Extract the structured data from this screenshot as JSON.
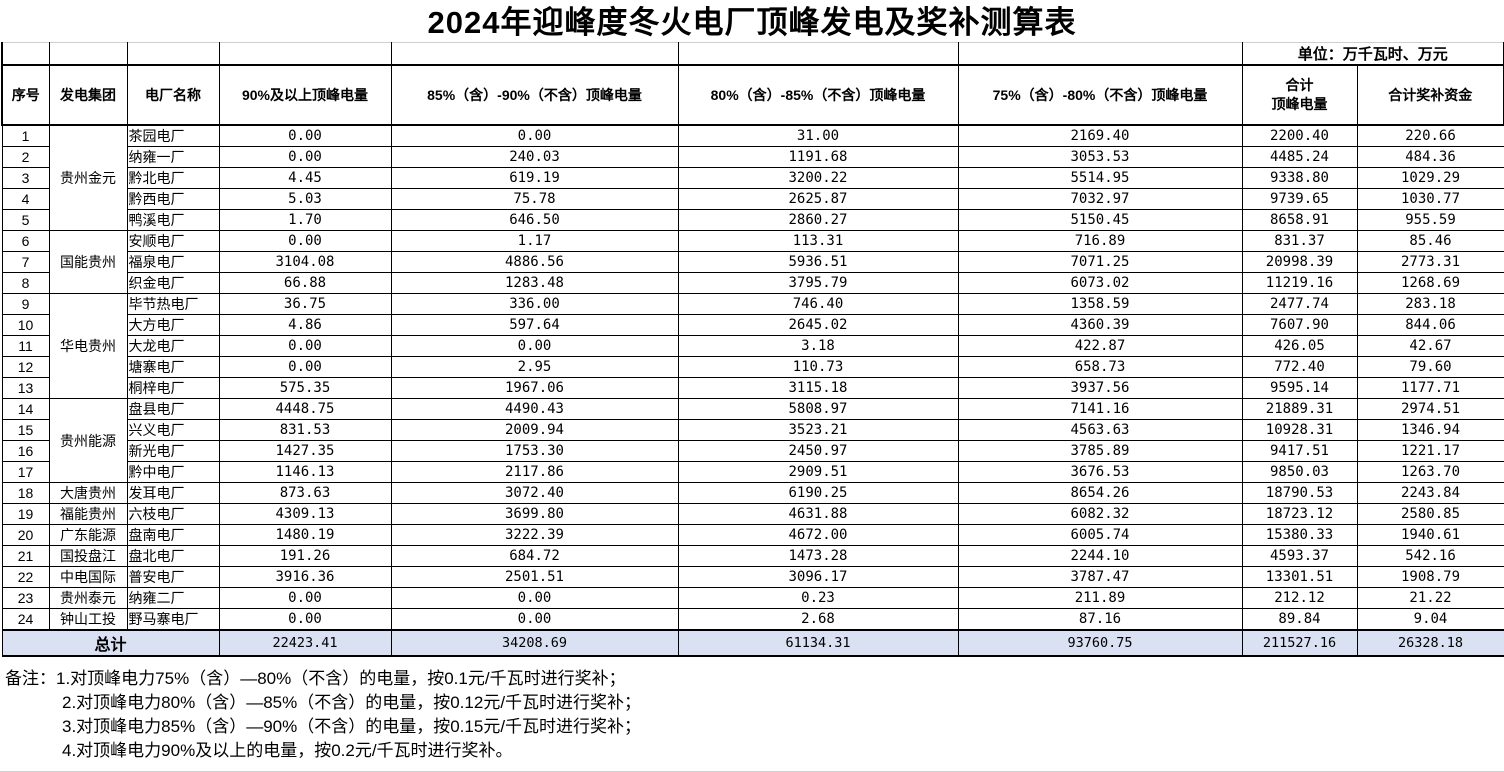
{
  "title": "2024年迎峰度冬火电厂顶峰发电及奖补测算表",
  "unit_note": "单位：万千瓦时、万元",
  "columns": [
    "序号",
    "发电集团",
    "电厂名称",
    "90%及以上顶峰电量",
    "85%（含）-90%（不含）顶峰电量",
    "80%（含）-85%（不含）顶峰电量",
    "75%（含）-80%（不含）顶峰电量",
    "合计\n顶峰电量",
    "合计奖补资金"
  ],
  "rows": [
    {
      "no": "1",
      "group": "贵州金元",
      "group_span": 5,
      "plant": "茶园电厂",
      "v90": "0.00",
      "v85": "0.00",
      "v80": "31.00",
      "v75": "2169.40",
      "total": "2200.40",
      "reward": "220.66"
    },
    {
      "no": "2",
      "plant": "纳雍一厂",
      "v90": "0.00",
      "v85": "240.03",
      "v80": "1191.68",
      "v75": "3053.53",
      "total": "4485.24",
      "reward": "484.36"
    },
    {
      "no": "3",
      "plant": "黔北电厂",
      "v90": "4.45",
      "v85": "619.19",
      "v80": "3200.22",
      "v75": "5514.95",
      "total": "9338.80",
      "reward": "1029.29"
    },
    {
      "no": "4",
      "plant": "黔西电厂",
      "v90": "5.03",
      "v85": "75.78",
      "v80": "2625.87",
      "v75": "7032.97",
      "total": "9739.65",
      "reward": "1030.77"
    },
    {
      "no": "5",
      "plant": "鸭溪电厂",
      "v90": "1.70",
      "v85": "646.50",
      "v80": "2860.27",
      "v75": "5150.45",
      "total": "8658.91",
      "reward": "955.59"
    },
    {
      "no": "6",
      "group": "国能贵州",
      "group_span": 3,
      "plant": "安顺电厂",
      "v90": "0.00",
      "v85": "1.17",
      "v80": "113.31",
      "v75": "716.89",
      "total": "831.37",
      "reward": "85.46"
    },
    {
      "no": "7",
      "plant": "福泉电厂",
      "v90": "3104.08",
      "v85": "4886.56",
      "v80": "5936.51",
      "v75": "7071.25",
      "total": "20998.39",
      "reward": "2773.31"
    },
    {
      "no": "8",
      "plant": "织金电厂",
      "v90": "66.88",
      "v85": "1283.48",
      "v80": "3795.79",
      "v75": "6073.02",
      "total": "11219.16",
      "reward": "1268.69"
    },
    {
      "no": "9",
      "group": "华电贵州",
      "group_span": 5,
      "plant": "毕节热电厂",
      "v90": "36.75",
      "v85": "336.00",
      "v80": "746.40",
      "v75": "1358.59",
      "total": "2477.74",
      "reward": "283.18"
    },
    {
      "no": "10",
      "plant": "大方电厂",
      "v90": "4.86",
      "v85": "597.64",
      "v80": "2645.02",
      "v75": "4360.39",
      "total": "7607.90",
      "reward": "844.06"
    },
    {
      "no": "11",
      "plant": "大龙电厂",
      "v90": "0.00",
      "v85": "0.00",
      "v80": "3.18",
      "v75": "422.87",
      "total": "426.05",
      "reward": "42.67"
    },
    {
      "no": "12",
      "plant": "塘寨电厂",
      "v90": "0.00",
      "v85": "2.95",
      "v80": "110.73",
      "v75": "658.73",
      "total": "772.40",
      "reward": "79.60"
    },
    {
      "no": "13",
      "plant": "桐梓电厂",
      "v90": "575.35",
      "v85": "1967.06",
      "v80": "3115.18",
      "v75": "3937.56",
      "total": "9595.14",
      "reward": "1177.71"
    },
    {
      "no": "14",
      "group": "贵州能源",
      "group_span": 4,
      "plant": "盘县电厂",
      "v90": "4448.75",
      "v85": "4490.43",
      "v80": "5808.97",
      "v75": "7141.16",
      "total": "21889.31",
      "reward": "2974.51"
    },
    {
      "no": "15",
      "plant": "兴义电厂",
      "v90": "831.53",
      "v85": "2009.94",
      "v80": "3523.21",
      "v75": "4563.63",
      "total": "10928.31",
      "reward": "1346.94"
    },
    {
      "no": "16",
      "plant": "新光电厂",
      "v90": "1427.35",
      "v85": "1753.30",
      "v80": "2450.97",
      "v75": "3785.89",
      "total": "9417.51",
      "reward": "1221.17"
    },
    {
      "no": "17",
      "plant": "黔中电厂",
      "v90": "1146.13",
      "v85": "2117.86",
      "v80": "2909.51",
      "v75": "3676.53",
      "total": "9850.03",
      "reward": "1263.70"
    },
    {
      "no": "18",
      "group": "大唐贵州",
      "group_span": 1,
      "plant": "发耳电厂",
      "v90": "873.63",
      "v85": "3072.40",
      "v80": "6190.25",
      "v75": "8654.26",
      "total": "18790.53",
      "reward": "2243.84"
    },
    {
      "no": "19",
      "group": "福能贵州",
      "group_span": 1,
      "plant": "六枝电厂",
      "v90": "4309.13",
      "v85": "3699.80",
      "v80": "4631.88",
      "v75": "6082.32",
      "total": "18723.12",
      "reward": "2580.85"
    },
    {
      "no": "20",
      "group": "广东能源",
      "group_span": 1,
      "plant": "盘南电厂",
      "v90": "1480.19",
      "v85": "3222.39",
      "v80": "4672.00",
      "v75": "6005.74",
      "total": "15380.33",
      "reward": "1940.61"
    },
    {
      "no": "21",
      "group": "国投盘江",
      "group_span": 1,
      "plant": "盘北电厂",
      "v90": "191.26",
      "v85": "684.72",
      "v80": "1473.28",
      "v75": "2244.10",
      "total": "4593.37",
      "reward": "542.16"
    },
    {
      "no": "22",
      "group": "中电国际",
      "group_span": 1,
      "plant": "普安电厂",
      "v90": "3916.36",
      "v85": "2501.51",
      "v80": "3096.17",
      "v75": "3787.47",
      "total": "13301.51",
      "reward": "1908.79"
    },
    {
      "no": "23",
      "group": "贵州泰元",
      "group_span": 1,
      "plant": "纳雍二厂",
      "v90": "0.00",
      "v85": "0.00",
      "v80": "0.23",
      "v75": "211.89",
      "total": "212.12",
      "reward": "21.22"
    },
    {
      "no": "24",
      "group": "钟山工投",
      "group_span": 1,
      "plant": "野马寨电厂",
      "v90": "0.00",
      "v85": "0.00",
      "v80": "2.68",
      "v75": "87.16",
      "total": "89.84",
      "reward": "9.04"
    }
  ],
  "total_row": {
    "label": "总计",
    "v90": "22423.41",
    "v85": "34208.69",
    "v80": "61134.31",
    "v75": "93760.75",
    "total": "211527.16",
    "reward": "26328.18"
  },
  "notes": {
    "label": "备注：",
    "lines": [
      "1.对顶峰电力75%（含）—80%（不含）的电量，按0.1元/千瓦时进行奖补；",
      "2.对顶峰电力80%（含）—85%（不含）的电量，按0.12元/千瓦时进行奖补；",
      "3.对顶峰电力85%（含）—90%（不含）的电量，按0.15元/千瓦时进行奖补；",
      "4.对顶峰电力90%及以上的电量，按0.2元/千瓦时进行奖补。"
    ]
  },
  "colors": {
    "total_row_bg": "#D9E1F2",
    "grid_line": "#000000",
    "faint_line": "#d0d0d0"
  }
}
